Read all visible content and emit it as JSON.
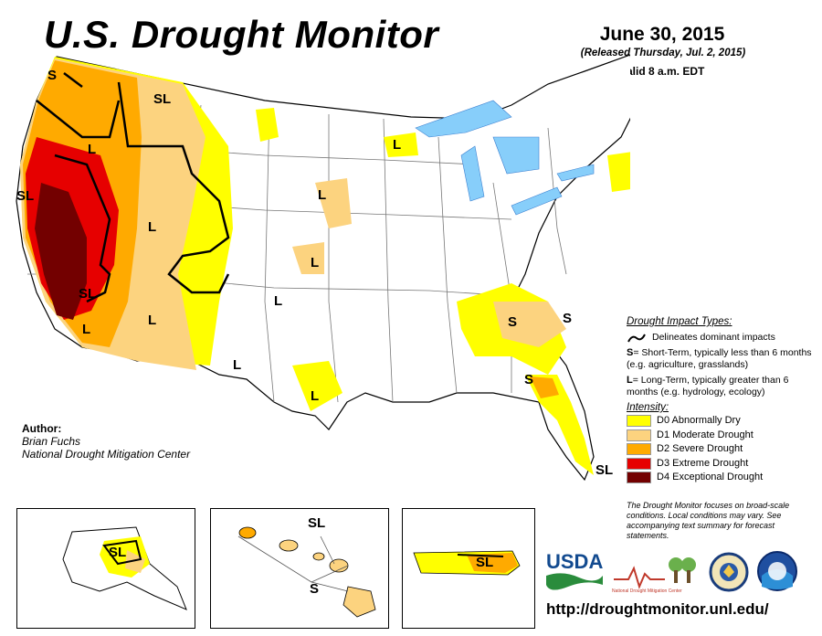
{
  "header": {
    "title": "U.S. Drought Monitor",
    "date": "June 30, 2015",
    "released": "(Released Thursday, Jul. 2, 2015)",
    "valid": "Valid 8 a.m. EDT"
  },
  "map_labels": {
    "s_nw": "S",
    "sl_nw": "SL",
    "l_or": "L",
    "sl_ca": "SL",
    "l_nv": "L",
    "l_ut": "L",
    "sl_sca": "SL",
    "l_az": "L",
    "l_sca": "L",
    "l_nm": "L",
    "l_co": "L",
    "l_ks": "L",
    "l_sd": "L",
    "l_mn": "L",
    "l_ne": "L",
    "l_tx": "L",
    "s_tn": "S",
    "s_nc": "S",
    "s_ga": "S",
    "sl_fl": "SL",
    "sl_ak": "SL",
    "sl_hi": "SL",
    "s_hi": "S",
    "sl_pr": "SL"
  },
  "author": {
    "heading": "Author:",
    "name": "Brian Fuchs",
    "org": "National Drought Mitigation Center"
  },
  "legend": {
    "impact_heading": "Drought Impact Types:",
    "delineates": "Delineates dominant impacts",
    "s_key": "S",
    "s_text": "= Short-Term, typically less than 6 months (e.g. agriculture, grasslands)",
    "l_key": "L",
    "l_text": "= Long-Term, typically greater than 6 months (e.g. hydrology, ecology)",
    "intensity_heading": "Intensity:",
    "intensity": [
      {
        "label": "D0 Abnormally Dry",
        "color": "#ffff00"
      },
      {
        "label": "D1 Moderate Drought",
        "color": "#fcd37f"
      },
      {
        "label": "D2 Severe Drought",
        "color": "#ffaa00"
      },
      {
        "label": "D3 Extreme Drought",
        "color": "#e60000"
      },
      {
        "label": "D4 Exceptional Drought",
        "color": "#730000"
      }
    ]
  },
  "note": "The Drought Monitor focuses on broad-scale conditions. Local conditions may vary. See accompanying text summary for forecast statements.",
  "logos": {
    "usda": "USDA",
    "ndmc": "National Drought Mitigation Center"
  },
  "url": "http://droughtmonitor.unl.edu/",
  "colors": {
    "water": "#87cefa",
    "d0": "#ffff00",
    "d1": "#fcd37f",
    "d2": "#ffaa00",
    "d3": "#e60000",
    "d4": "#730000",
    "boundary": "#000000",
    "county": "#c8c8c8",
    "river": "#3a5fe0"
  }
}
